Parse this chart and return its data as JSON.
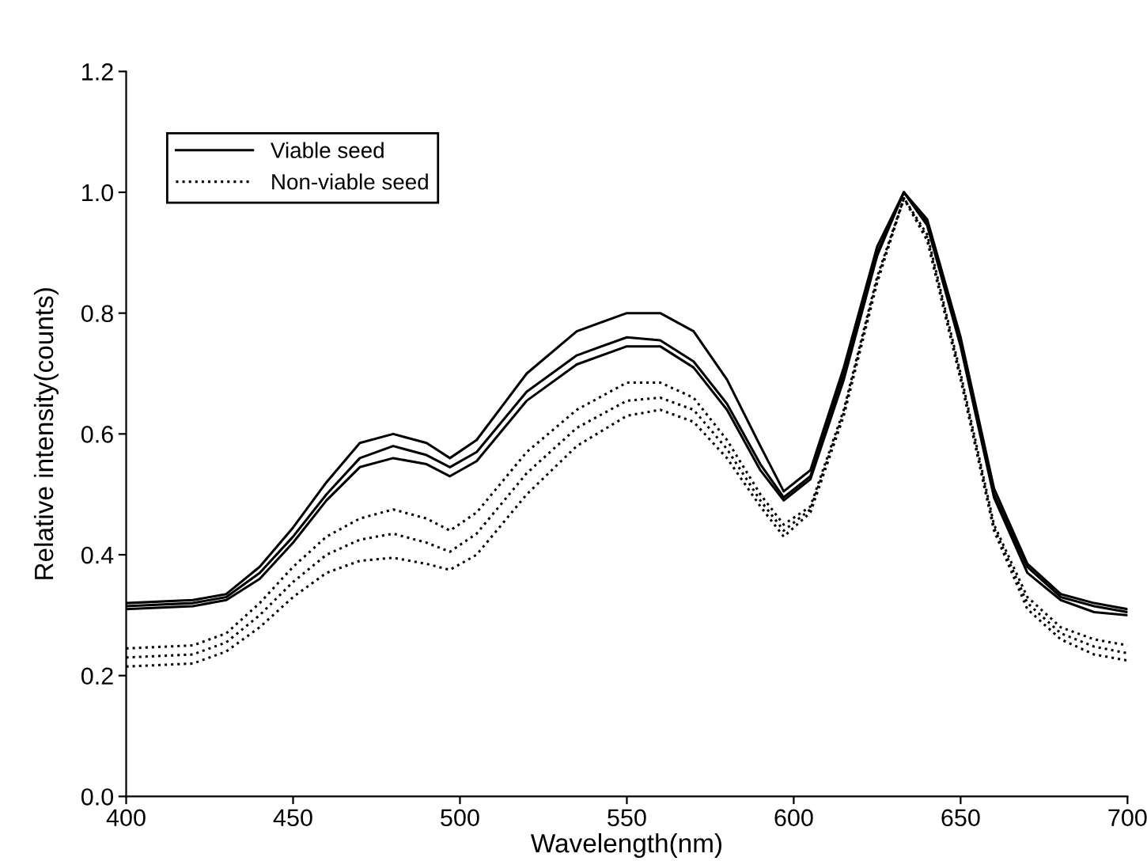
{
  "chart_data": {
    "type": "line",
    "xlabel": "Wavelength(nm)",
    "ylabel": "Relative intensity(counts)",
    "x": [
      400,
      420,
      430,
      440,
      450,
      460,
      470,
      480,
      490,
      497,
      505,
      520,
      535,
      550,
      560,
      570,
      580,
      590,
      597,
      605,
      615,
      625,
      633,
      640,
      650,
      660,
      670,
      680,
      690,
      700
    ],
    "xlim": [
      400,
      700
    ],
    "xticks": [
      400,
      450,
      500,
      550,
      600,
      650,
      700
    ],
    "ylim": [
      0,
      1.2
    ],
    "yticks": [
      {
        "value": 0,
        "label": "0.0"
      },
      {
        "value": 0.2,
        "label": "0.2"
      },
      {
        "value": 0.4,
        "label": "0.4"
      },
      {
        "value": 0.6,
        "label": "0.6"
      },
      {
        "value": 0.8,
        "label": "0.8"
      },
      {
        "value": 1.0,
        "label": "1.0"
      },
      {
        "value": 1.2,
        "label": "1.2"
      }
    ],
    "grid": false,
    "legend": "top left",
    "marker": "none",
    "series": [
      {
        "name": "Viable seed",
        "color": "#000000",
        "line_style": "solid",
        "values": [
          0.315,
          0.32,
          0.33,
          0.37,
          0.43,
          0.5,
          0.56,
          0.58,
          0.565,
          0.545,
          0.57,
          0.67,
          0.73,
          0.76,
          0.755,
          0.72,
          0.65,
          0.55,
          0.495,
          0.53,
          0.7,
          0.9,
          1.0,
          0.95,
          0.75,
          0.5,
          0.38,
          0.33,
          0.315,
          0.305
        ]
      },
      {
        "color": "#000000",
        "line_style": "solid",
        "values": [
          0.32,
          0.325,
          0.335,
          0.38,
          0.445,
          0.52,
          0.585,
          0.6,
          0.585,
          0.56,
          0.59,
          0.7,
          0.77,
          0.8,
          0.8,
          0.77,
          0.69,
          0.58,
          0.505,
          0.54,
          0.71,
          0.91,
          1.0,
          0.955,
          0.76,
          0.51,
          0.385,
          0.335,
          0.32,
          0.31
        ]
      },
      {
        "color": "#000000",
        "line_style": "solid",
        "values": [
          0.31,
          0.315,
          0.325,
          0.36,
          0.42,
          0.49,
          0.545,
          0.56,
          0.55,
          0.53,
          0.555,
          0.655,
          0.715,
          0.745,
          0.745,
          0.71,
          0.64,
          0.54,
          0.49,
          0.525,
          0.69,
          0.895,
          1.0,
          0.945,
          0.745,
          0.495,
          0.37,
          0.325,
          0.305,
          0.3
        ]
      },
      {
        "name": "Non-viable seed",
        "color": "#000000",
        "line_style": "dotted",
        "values": [
          0.245,
          0.25,
          0.27,
          0.32,
          0.38,
          0.43,
          0.46,
          0.475,
          0.46,
          0.44,
          0.47,
          0.57,
          0.64,
          0.685,
          0.685,
          0.66,
          0.59,
          0.5,
          0.45,
          0.48,
          0.64,
          0.86,
          0.99,
          0.93,
          0.7,
          0.45,
          0.33,
          0.28,
          0.26,
          0.25
        ]
      },
      {
        "color": "#000000",
        "line_style": "dotted",
        "values": [
          0.23,
          0.235,
          0.255,
          0.3,
          0.355,
          0.4,
          0.425,
          0.435,
          0.42,
          0.405,
          0.435,
          0.535,
          0.61,
          0.655,
          0.66,
          0.64,
          0.575,
          0.49,
          0.44,
          0.475,
          0.635,
          0.855,
          0.99,
          0.925,
          0.695,
          0.445,
          0.32,
          0.27,
          0.248,
          0.237
        ]
      },
      {
        "color": "#000000",
        "line_style": "dotted",
        "values": [
          0.215,
          0.22,
          0.24,
          0.28,
          0.33,
          0.37,
          0.39,
          0.395,
          0.385,
          0.375,
          0.4,
          0.5,
          0.58,
          0.63,
          0.64,
          0.62,
          0.56,
          0.48,
          0.43,
          0.47,
          0.63,
          0.85,
          0.99,
          0.92,
          0.69,
          0.44,
          0.31,
          0.26,
          0.235,
          0.225
        ]
      }
    ]
  }
}
